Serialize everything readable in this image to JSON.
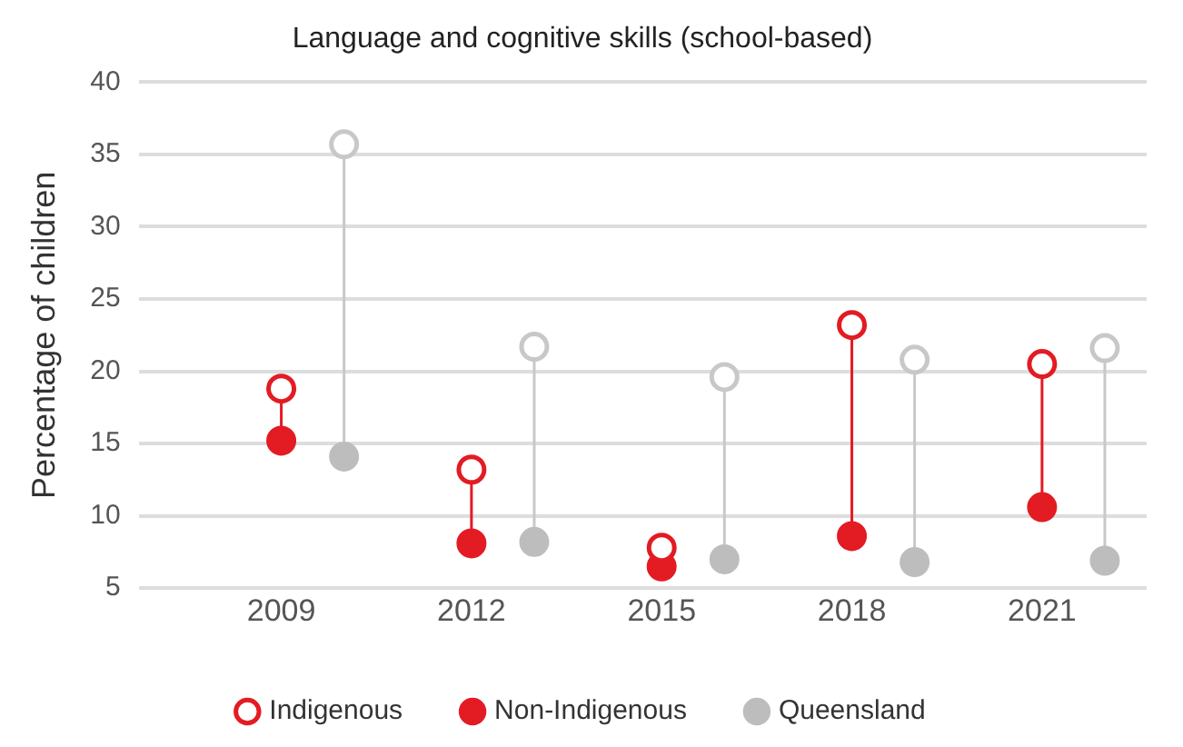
{
  "chart_data": {
    "type": "scatter",
    "title": "Language and cognitive skills (school-based)",
    "ylabel": "Percentage of children",
    "categories": [
      "2009",
      "2012",
      "2015",
      "2018",
      "2021"
    ],
    "series": [
      {
        "name": "Indigenous",
        "color": "#e31b23",
        "marker": "circle",
        "values": [
          18.8,
          13.2,
          7.8,
          23.2,
          20.5
        ]
      },
      {
        "name": "Non-Indigenous",
        "color": "#e31b23",
        "marker": "circle",
        "values": [
          15.2,
          8.1,
          6.5,
          8.6,
          10.6
        ]
      },
      {
        "color": "#c8c8c8",
        "marker": "circle",
        "values": [
          35.7,
          21.7,
          19.6,
          20.8,
          21.6
        ]
      },
      {
        "name": "Queensland",
        "color": "#bdbdbd",
        "marker": "circle",
        "values": [
          14.1,
          8.2,
          7.0,
          6.8,
          6.9
        ]
      }
    ],
    "ylim": [
      5,
      40
    ],
    "yticks": [
      5,
      10,
      15,
      20,
      25,
      30,
      35,
      40
    ],
    "grid": "y",
    "legend": "bottom"
  }
}
